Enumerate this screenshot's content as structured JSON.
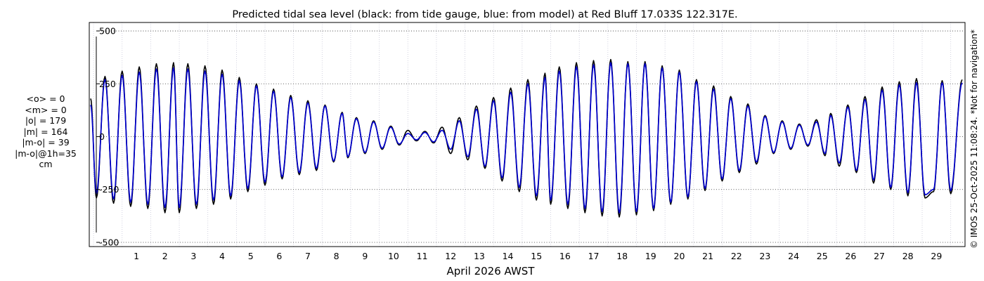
{
  "chart_data": {
    "type": "line",
    "title": "Predicted tidal sea level (black: from tide gauge, blue: from model) at Red Bluff 17.033S 122.317E.",
    "xlabel": "April 2026 AWST",
    "ylabel": "",
    "ylim": [
      -520,
      540
    ],
    "xlim": [
      -0.65,
      30.0
    ],
    "x_ticks": [
      1,
      2,
      3,
      4,
      5,
      6,
      7,
      8,
      9,
      10,
      11,
      12,
      13,
      14,
      15,
      16,
      17,
      18,
      19,
      20,
      21,
      22,
      23,
      24,
      25,
      26,
      27,
      28,
      29
    ],
    "x_tick_labels": [
      "1",
      "2",
      "3",
      "4",
      "5",
      "6",
      "7",
      "8",
      "9",
      "10",
      "11",
      "12",
      "13",
      "14",
      "15",
      "16",
      "17",
      "18",
      "19",
      "20",
      "21",
      "22",
      "23",
      "24",
      "25",
      "26",
      "27",
      "28",
      "29"
    ],
    "y_ticks": [
      500,
      250,
      0,
      -250,
      -500
    ],
    "y_tick_labels": [
      "500",
      "250",
      "0",
      "-250",
      "-500"
    ],
    "grid": true,
    "series": [
      {
        "name": "from tide gauge",
        "color": "#000000",
        "x": [
          -0.6,
          -0.4,
          -0.1,
          0.2,
          0.5,
          0.8,
          1.1,
          1.4,
          1.7,
          2.0,
          2.3,
          2.5,
          2.8,
          3.1,
          3.4,
          3.7,
          4.0,
          4.3,
          4.6,
          4.9,
          5.2,
          5.5,
          5.8,
          6.1,
          6.4,
          6.7,
          7.0,
          7.3,
          7.6,
          7.9,
          8.2,
          8.4,
          8.7,
          9.0,
          9.3,
          9.6,
          9.9,
          10.2,
          10.5,
          10.8,
          11.1,
          11.4,
          11.7,
          12.0,
          12.3,
          12.6,
          12.9,
          13.2,
          13.5,
          13.8,
          14.1,
          14.4,
          14.7,
          15.0,
          15.3,
          15.5,
          15.8,
          16.1,
          16.4,
          16.7,
          17.0,
          17.3,
          17.6,
          17.9,
          18.2,
          18.5,
          18.8,
          19.1,
          19.4,
          19.7,
          20.0,
          20.3,
          20.6,
          20.9,
          21.2,
          21.5,
          21.8,
          22.1,
          22.4,
          22.7,
          23.0,
          23.3,
          23.6,
          23.9,
          24.2,
          24.5,
          24.8,
          25.1,
          25.3,
          25.6,
          25.9,
          26.2,
          26.5,
          26.8,
          27.1,
          27.4,
          27.7,
          28.0,
          28.3,
          28.6,
          28.9,
          29.2,
          29.5,
          29.9
        ],
        "y": [
          180,
          -290,
          285,
          -315,
          310,
          -330,
          330,
          -340,
          345,
          -360,
          350,
          -360,
          345,
          -340,
          335,
          -320,
          315,
          -295,
          280,
          -260,
          250,
          -230,
          225,
          -200,
          195,
          -180,
          170,
          -160,
          150,
          -120,
          115,
          -100,
          90,
          -80,
          75,
          -60,
          50,
          -40,
          30,
          -20,
          25,
          -30,
          45,
          -80,
          90,
          -110,
          145,
          -150,
          185,
          -210,
          230,
          -260,
          270,
          -300,
          300,
          -320,
          330,
          -340,
          350,
          -360,
          360,
          -375,
          365,
          -380,
          355,
          -370,
          355,
          -350,
          335,
          -320,
          315,
          -295,
          270,
          -255,
          240,
          -210,
          190,
          -170,
          155,
          -130,
          100,
          -80,
          75,
          -60,
          60,
          -45,
          80,
          -90,
          110,
          -140,
          150,
          -170,
          190,
          -220,
          235,
          -250,
          260,
          -280,
          275,
          -290,
          -260,
          265,
          -270,
          270
        ]
      },
      {
        "name": "from model",
        "color": "#0000cc",
        "x": [
          -0.6,
          -0.4,
          -0.1,
          0.2,
          0.5,
          0.8,
          1.1,
          1.4,
          1.7,
          2.0,
          2.3,
          2.5,
          2.8,
          3.1,
          3.4,
          3.7,
          4.0,
          4.3,
          4.6,
          4.9,
          5.2,
          5.5,
          5.8,
          6.1,
          6.4,
          6.7,
          7.0,
          7.3,
          7.6,
          7.9,
          8.2,
          8.4,
          8.7,
          9.0,
          9.3,
          9.6,
          9.9,
          10.2,
          10.5,
          10.8,
          11.1,
          11.4,
          11.7,
          12.0,
          12.3,
          12.6,
          12.9,
          13.2,
          13.5,
          13.8,
          14.1,
          14.4,
          14.7,
          15.0,
          15.3,
          15.5,
          15.8,
          16.1,
          16.4,
          16.7,
          17.0,
          17.3,
          17.6,
          17.9,
          18.2,
          18.5,
          18.8,
          19.1,
          19.4,
          19.7,
          20.0,
          20.3,
          20.6,
          20.9,
          21.2,
          21.5,
          21.8,
          22.1,
          22.4,
          22.7,
          23.0,
          23.3,
          23.6,
          23.9,
          24.2,
          24.5,
          24.8,
          25.1,
          25.3,
          25.6,
          25.9,
          26.2,
          26.5,
          26.8,
          27.1,
          27.4,
          27.7,
          28.0,
          28.3,
          28.6,
          28.9,
          29.2,
          29.5,
          29.9
        ],
        "y": [
          150,
          -270,
          270,
          -295,
          290,
          -310,
          305,
          -320,
          320,
          -335,
          325,
          -335,
          320,
          -320,
          310,
          -300,
          295,
          -280,
          265,
          -245,
          240,
          -215,
          215,
          -190,
          185,
          -170,
          160,
          -150,
          145,
          -115,
          110,
          -95,
          85,
          -75,
          70,
          -55,
          45,
          -35,
          15,
          -15,
          20,
          -25,
          30,
          -60,
          75,
          -95,
          130,
          -140,
          170,
          -195,
          210,
          -240,
          250,
          -280,
          280,
          -300,
          310,
          -320,
          330,
          -340,
          340,
          -355,
          350,
          -360,
          345,
          -355,
          345,
          -340,
          325,
          -310,
          305,
          -285,
          260,
          -245,
          225,
          -200,
          180,
          -160,
          145,
          -120,
          95,
          -75,
          70,
          -55,
          55,
          -40,
          70,
          -80,
          100,
          -125,
          140,
          -160,
          175,
          -205,
          220,
          -240,
          245,
          -265,
          255,
          -275,
          -250,
          255,
          -255,
          255
        ]
      }
    ]
  },
  "stats": {
    "lines": [
      "<o> = 0",
      "<m> = 0",
      "|o| = 179",
      "|m| = 164",
      "|m-o| = 39",
      "|m-o|@1h=35",
      "cm"
    ]
  },
  "copyright": "© IMOS 25-Oct-2025 11:08:24. *Not for navigation*"
}
